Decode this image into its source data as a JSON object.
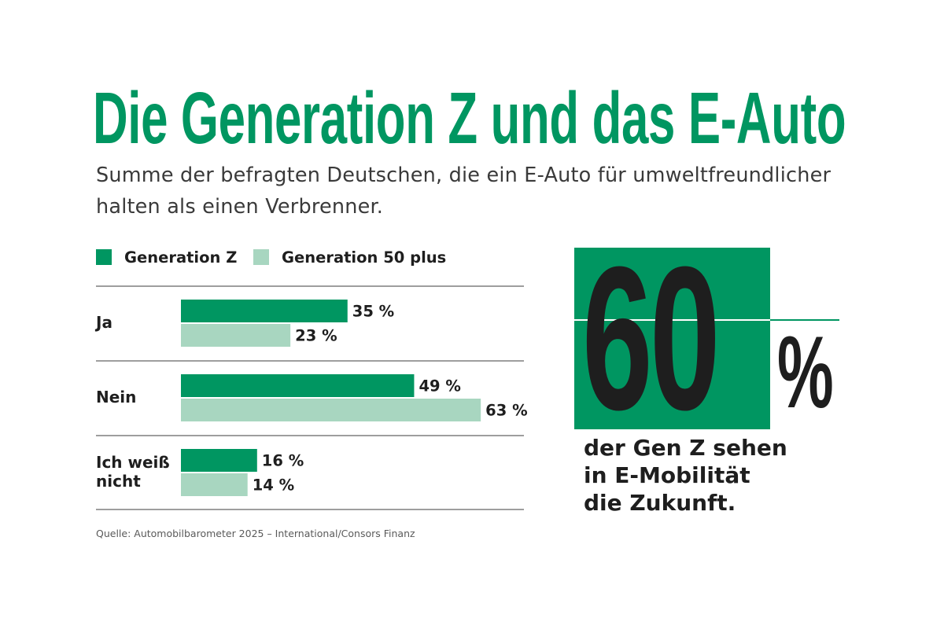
{
  "title": "Die Generation Z und das E-Auto",
  "subtitle": "Summe der befragten Deutschen, die ein E-Auto für umweltfreundlicher halten als einen Verbrenner.",
  "colors": {
    "generation_z": "#009661",
    "generation_50_plus": "#a8d6c0",
    "text": "#1e1e1e",
    "rule": "#3c3c3c"
  },
  "chart_data": {
    "type": "bar",
    "orientation": "horizontal",
    "title": "Die Generation Z und das E-Auto",
    "subtitle": "Summe der befragten Deutschen, die ein E-Auto für umweltfreundlicher halten als einen Verbrenner.",
    "categories": [
      "Ja",
      "Nein",
      "Ich weiß nicht"
    ],
    "series": [
      {
        "name": "Generation Z",
        "values": [
          35,
          49,
          16
        ],
        "labels": [
          "35 %",
          "49 %",
          "16 %"
        ]
      },
      {
        "name": "Generation 50 plus",
        "values": [
          23,
          63,
          14
        ],
        "labels": [
          "23 %",
          "63 %",
          "14 %"
        ]
      }
    ],
    "unit": "%",
    "grid": false,
    "legend_position": "top-left"
  },
  "callout": {
    "number": "60",
    "percent_sign": "%",
    "caption_lines": [
      "der Gen Z sehen",
      "in E-Mobilität",
      "die Zukunft."
    ]
  },
  "source": "Quelle: Automobilbarometer 2025 – International/Consors Finanz"
}
